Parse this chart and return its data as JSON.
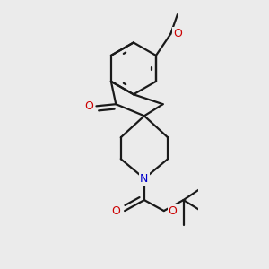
{
  "bg_color": "#ebebeb",
  "bond_color": "#1a1a1a",
  "oxygen_color": "#cc0000",
  "nitrogen_color": "#0000cc",
  "lw": 1.6,
  "fs": 9.0,
  "xlim": [
    -0.55,
    0.75
  ],
  "ylim": [
    -1.45,
    1.3
  ]
}
